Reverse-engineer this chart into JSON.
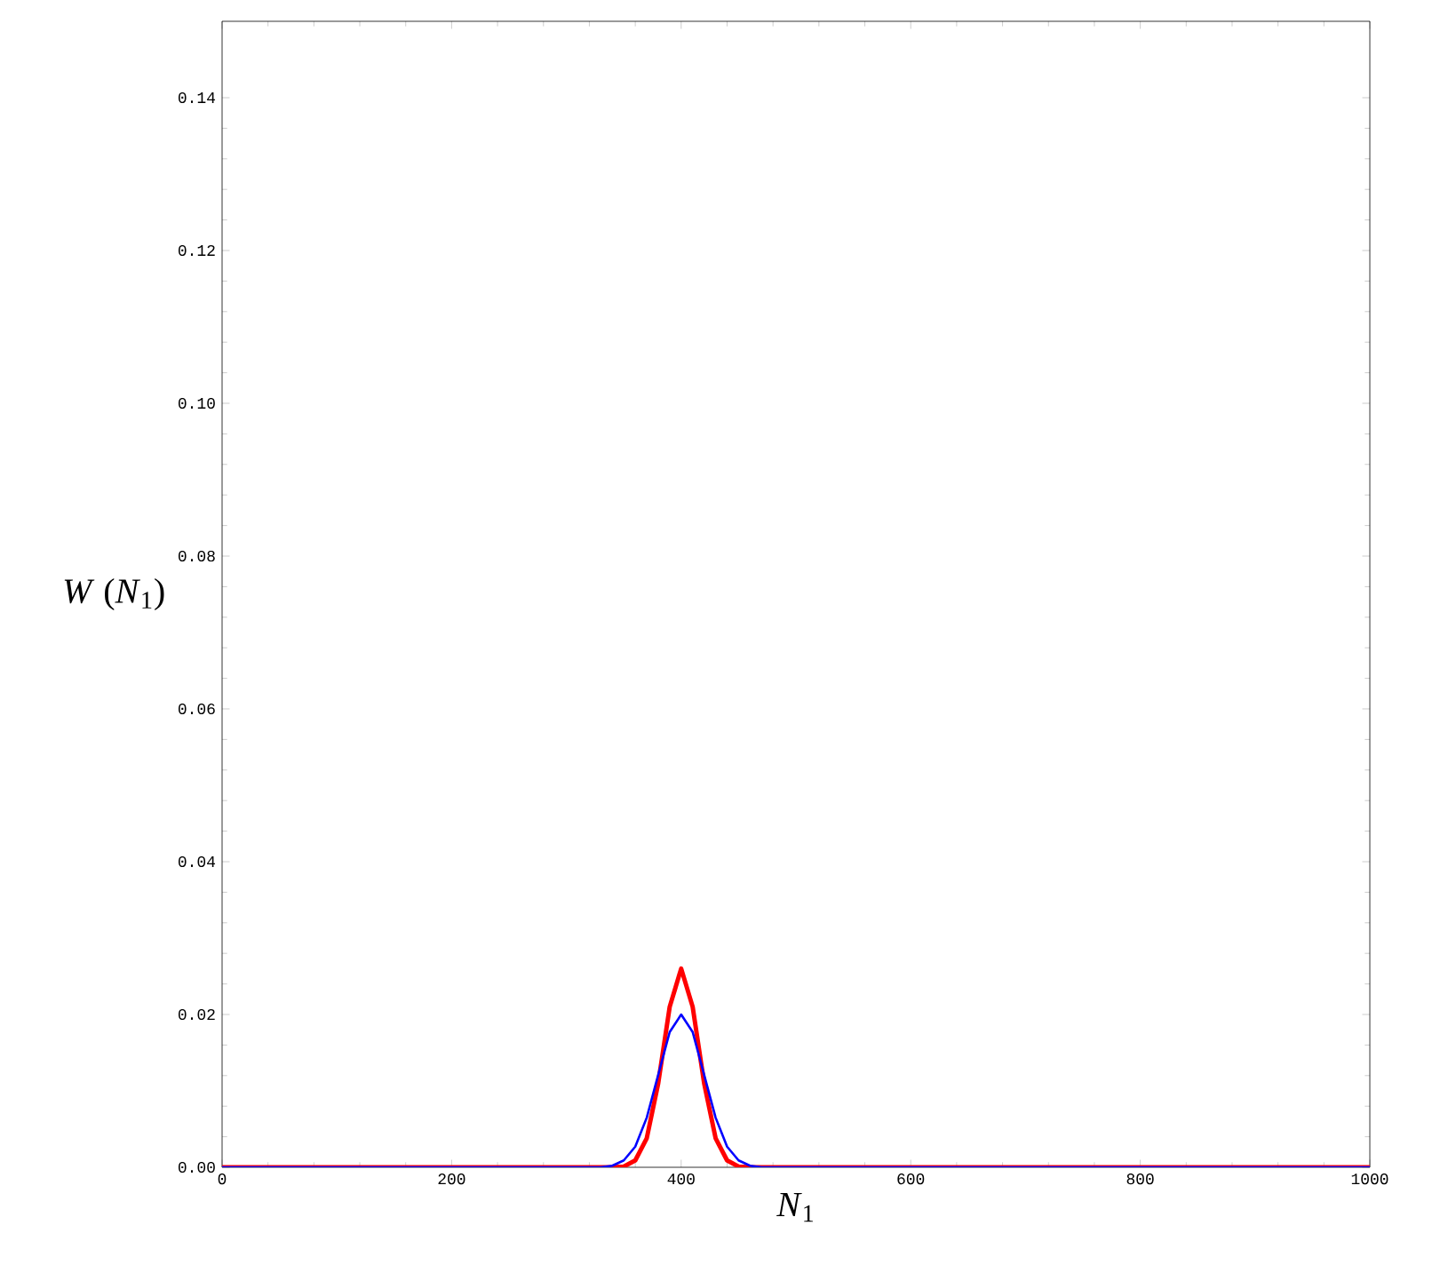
{
  "chart_data": {
    "type": "line",
    "xlabel": "*N*$_{1}$",
    "ylabel": "*W* (*N*$_{1}$)",
    "xlim": [
      0,
      1000
    ],
    "ylim": [
      0,
      0.15
    ],
    "xticks": [
      0,
      200,
      400,
      600,
      800,
      1000
    ],
    "yticks": [
      {
        "value": 0,
        "label": "0.00"
      },
      {
        "value": 0.02,
        "label": "0.02"
      },
      {
        "value": 0.04,
        "label": "0.04"
      },
      {
        "value": 0.06,
        "label": "0.06"
      },
      {
        "value": 0.08,
        "label": "0.08"
      },
      {
        "value": 0.1,
        "label": "0.10"
      },
      {
        "value": 0.12,
        "label": "0.12"
      },
      {
        "value": 0.14,
        "label": "0.14"
      }
    ],
    "series": [
      {
        "color": "#ff0000",
        "x": [
          0,
          330,
          340,
          350,
          360,
          370,
          380,
          390,
          400,
          410,
          420,
          430,
          440,
          450,
          460,
          470,
          1000
        ],
        "values": [
          0,
          0,
          0,
          0.0001,
          0.0009,
          0.0038,
          0.011,
          0.021,
          0.026,
          0.021,
          0.011,
          0.0038,
          0.0009,
          0.0001,
          0,
          0,
          0
        ]
      },
      {
        "color": "#0000ff",
        "x": [
          0,
          330,
          340,
          350,
          360,
          370,
          380,
          390,
          400,
          410,
          420,
          430,
          440,
          450,
          460,
          470,
          1000
        ],
        "values": [
          0,
          0,
          0.0002,
          0.0009,
          0.0027,
          0.0065,
          0.0121,
          0.0177,
          0.02,
          0.0177,
          0.0121,
          0.0065,
          0.0027,
          0.0009,
          0.0002,
          0,
          0
        ]
      }
    ]
  }
}
